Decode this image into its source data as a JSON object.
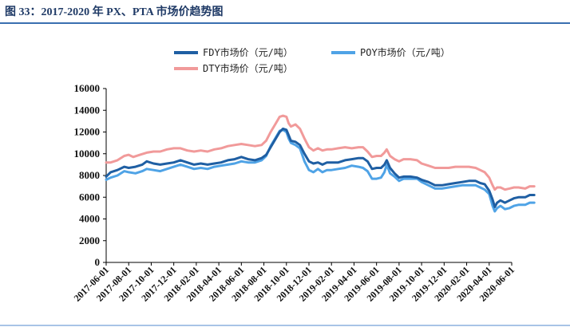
{
  "header": {
    "title": "图  33：2017-2020 年 PX、PTA 市场价趋势图"
  },
  "chart_data": {
    "type": "line",
    "title": "2017-2020 年 PX、PTA 市场价趋势图",
    "xlabel": "",
    "ylabel": "",
    "ylim": [
      0,
      16000
    ],
    "yticks": [
      0,
      2000,
      4000,
      6000,
      8000,
      10000,
      12000,
      14000,
      16000
    ],
    "categories": [
      "2017-06-01",
      "2017-08-01",
      "2017-10-01",
      "2017-12-01",
      "2018-02-01",
      "2018-04-01",
      "2018-06-01",
      "2018-08-01",
      "2018-10-01",
      "2018-12-01",
      "2019-02-01",
      "2019-04-01",
      "2019-06-01",
      "2019-08-01",
      "2019-10-01",
      "2019-12-01",
      "2020-02-01",
      "2020-04-01",
      "2020-06-01"
    ],
    "legend_position": "top",
    "series": [
      {
        "name": "FDY市场价（元/吨）",
        "color": "#1f5fa3",
        "points": [
          [
            0,
            7900
          ],
          [
            0.2,
            8300
          ],
          [
            0.5,
            8500
          ],
          [
            0.8,
            8800
          ],
          [
            1.0,
            8700
          ],
          [
            1.3,
            8800
          ],
          [
            1.6,
            9000
          ],
          [
            1.8,
            9300
          ],
          [
            2.1,
            9100
          ],
          [
            2.4,
            9000
          ],
          [
            2.7,
            9100
          ],
          [
            3.0,
            9200
          ],
          [
            3.3,
            9400
          ],
          [
            3.6,
            9200
          ],
          [
            3.9,
            9000
          ],
          [
            4.2,
            9100
          ],
          [
            4.5,
            9000
          ],
          [
            4.8,
            9100
          ],
          [
            5.1,
            9200
          ],
          [
            5.4,
            9400
          ],
          [
            5.7,
            9500
          ],
          [
            6.0,
            9700
          ],
          [
            6.3,
            9500
          ],
          [
            6.6,
            9400
          ],
          [
            6.9,
            9600
          ],
          [
            7.1,
            9900
          ],
          [
            7.3,
            10600
          ],
          [
            7.5,
            11300
          ],
          [
            7.7,
            12000
          ],
          [
            7.85,
            12300
          ],
          [
            8.0,
            12200
          ],
          [
            8.1,
            11700
          ],
          [
            8.2,
            11200
          ],
          [
            8.4,
            11100
          ],
          [
            8.6,
            10800
          ],
          [
            8.8,
            10000
          ],
          [
            9.0,
            9300
          ],
          [
            9.2,
            9100
          ],
          [
            9.4,
            9200
          ],
          [
            9.6,
            9000
          ],
          [
            9.8,
            9200
          ],
          [
            10.0,
            9200
          ],
          [
            10.3,
            9200
          ],
          [
            10.6,
            9400
          ],
          [
            10.9,
            9500
          ],
          [
            11.2,
            9600
          ],
          [
            11.4,
            9600
          ],
          [
            11.6,
            9300
          ],
          [
            11.8,
            8600
          ],
          [
            12.0,
            8700
          ],
          [
            12.2,
            8700
          ],
          [
            12.35,
            9000
          ],
          [
            12.45,
            9400
          ],
          [
            12.6,
            8700
          ],
          [
            12.8,
            8200
          ],
          [
            13.0,
            7800
          ],
          [
            13.2,
            7900
          ],
          [
            13.5,
            7900
          ],
          [
            13.8,
            7800
          ],
          [
            14.0,
            7600
          ],
          [
            14.3,
            7400
          ],
          [
            14.6,
            7100
          ],
          [
            14.9,
            7100
          ],
          [
            15.2,
            7200
          ],
          [
            15.5,
            7300
          ],
          [
            15.8,
            7400
          ],
          [
            16.1,
            7500
          ],
          [
            16.4,
            7500
          ],
          [
            16.6,
            7300
          ],
          [
            16.8,
            7200
          ],
          [
            17.0,
            6600
          ],
          [
            17.15,
            5800
          ],
          [
            17.25,
            5100
          ],
          [
            17.35,
            5500
          ],
          [
            17.5,
            5700
          ],
          [
            17.7,
            5500
          ],
          [
            17.9,
            5700
          ],
          [
            18.1,
            5900
          ],
          [
            18.3,
            6000
          ],
          [
            18.6,
            6000
          ],
          [
            18.8,
            6200
          ],
          [
            19.0,
            6200
          ]
        ]
      },
      {
        "name": "POY市场价（元/吨）",
        "color": "#4fa3e6",
        "points": [
          [
            0,
            7600
          ],
          [
            0.2,
            7800
          ],
          [
            0.5,
            8000
          ],
          [
            0.8,
            8400
          ],
          [
            1.0,
            8300
          ],
          [
            1.3,
            8200
          ],
          [
            1.6,
            8400
          ],
          [
            1.8,
            8600
          ],
          [
            2.1,
            8500
          ],
          [
            2.4,
            8400
          ],
          [
            2.7,
            8600
          ],
          [
            3.0,
            8800
          ],
          [
            3.3,
            9000
          ],
          [
            3.6,
            8800
          ],
          [
            3.9,
            8600
          ],
          [
            4.2,
            8700
          ],
          [
            4.5,
            8600
          ],
          [
            4.8,
            8800
          ],
          [
            5.1,
            8900
          ],
          [
            5.4,
            9000
          ],
          [
            5.7,
            9100
          ],
          [
            6.0,
            9300
          ],
          [
            6.3,
            9200
          ],
          [
            6.6,
            9200
          ],
          [
            6.9,
            9400
          ],
          [
            7.1,
            9800
          ],
          [
            7.3,
            10700
          ],
          [
            7.5,
            11400
          ],
          [
            7.7,
            12100
          ],
          [
            7.85,
            12200
          ],
          [
            8.0,
            12000
          ],
          [
            8.1,
            11400
          ],
          [
            8.2,
            11000
          ],
          [
            8.4,
            10800
          ],
          [
            8.6,
            10500
          ],
          [
            8.8,
            9300
          ],
          [
            9.0,
            8500
          ],
          [
            9.2,
            8300
          ],
          [
            9.4,
            8600
          ],
          [
            9.6,
            8300
          ],
          [
            9.8,
            8500
          ],
          [
            10.0,
            8500
          ],
          [
            10.3,
            8600
          ],
          [
            10.6,
            8700
          ],
          [
            10.9,
            8900
          ],
          [
            11.2,
            8800
          ],
          [
            11.4,
            8700
          ],
          [
            11.6,
            8400
          ],
          [
            11.8,
            7700
          ],
          [
            12.0,
            7700
          ],
          [
            12.2,
            7800
          ],
          [
            12.35,
            8300
          ],
          [
            12.45,
            9000
          ],
          [
            12.6,
            8200
          ],
          [
            12.8,
            7900
          ],
          [
            13.0,
            7500
          ],
          [
            13.2,
            7700
          ],
          [
            13.5,
            7700
          ],
          [
            13.8,
            7700
          ],
          [
            14.0,
            7400
          ],
          [
            14.3,
            7100
          ],
          [
            14.6,
            6800
          ],
          [
            14.9,
            6800
          ],
          [
            15.2,
            6900
          ],
          [
            15.5,
            7000
          ],
          [
            15.8,
            7100
          ],
          [
            16.1,
            7100
          ],
          [
            16.4,
            7100
          ],
          [
            16.6,
            6900
          ],
          [
            16.8,
            6700
          ],
          [
            17.0,
            6300
          ],
          [
            17.15,
            5200
          ],
          [
            17.25,
            4700
          ],
          [
            17.35,
            5000
          ],
          [
            17.5,
            5200
          ],
          [
            17.7,
            4900
          ],
          [
            17.9,
            5000
          ],
          [
            18.1,
            5200
          ],
          [
            18.3,
            5300
          ],
          [
            18.6,
            5300
          ],
          [
            18.8,
            5500
          ],
          [
            19.0,
            5500
          ]
        ]
      },
      {
        "name": "DTY市场价（元/吨）",
        "color": "#f19a9a",
        "points": [
          [
            0,
            9200
          ],
          [
            0.2,
            9200
          ],
          [
            0.5,
            9400
          ],
          [
            0.8,
            9800
          ],
          [
            1.0,
            9900
          ],
          [
            1.2,
            9700
          ],
          [
            1.5,
            9900
          ],
          [
            1.8,
            10100
          ],
          [
            2.1,
            10200
          ],
          [
            2.4,
            10200
          ],
          [
            2.7,
            10400
          ],
          [
            3.0,
            10500
          ],
          [
            3.3,
            10500
          ],
          [
            3.6,
            10300
          ],
          [
            3.9,
            10200
          ],
          [
            4.2,
            10300
          ],
          [
            4.5,
            10200
          ],
          [
            4.8,
            10400
          ],
          [
            5.1,
            10500
          ],
          [
            5.4,
            10700
          ],
          [
            5.7,
            10800
          ],
          [
            6.0,
            10900
          ],
          [
            6.3,
            10800
          ],
          [
            6.6,
            10700
          ],
          [
            6.9,
            10800
          ],
          [
            7.1,
            11200
          ],
          [
            7.3,
            12000
          ],
          [
            7.5,
            12700
          ],
          [
            7.7,
            13400
          ],
          [
            7.85,
            13500
          ],
          [
            8.0,
            13400
          ],
          [
            8.1,
            12800
          ],
          [
            8.2,
            12500
          ],
          [
            8.4,
            12700
          ],
          [
            8.6,
            12300
          ],
          [
            8.8,
            11400
          ],
          [
            9.0,
            10600
          ],
          [
            9.2,
            10300
          ],
          [
            9.4,
            10500
          ],
          [
            9.6,
            10300
          ],
          [
            9.8,
            10400
          ],
          [
            10.0,
            10400
          ],
          [
            10.3,
            10500
          ],
          [
            10.6,
            10600
          ],
          [
            10.9,
            10500
          ],
          [
            11.2,
            10600
          ],
          [
            11.4,
            10600
          ],
          [
            11.6,
            10200
          ],
          [
            11.8,
            9700
          ],
          [
            12.0,
            9800
          ],
          [
            12.2,
            9800
          ],
          [
            12.35,
            10100
          ],
          [
            12.45,
            10400
          ],
          [
            12.6,
            9800
          ],
          [
            12.8,
            9500
          ],
          [
            13.0,
            9300
          ],
          [
            13.2,
            9500
          ],
          [
            13.5,
            9500
          ],
          [
            13.8,
            9400
          ],
          [
            14.0,
            9100
          ],
          [
            14.3,
            8900
          ],
          [
            14.6,
            8700
          ],
          [
            14.9,
            8700
          ],
          [
            15.2,
            8700
          ],
          [
            15.5,
            8800
          ],
          [
            15.8,
            8800
          ],
          [
            16.1,
            8800
          ],
          [
            16.4,
            8700
          ],
          [
            16.6,
            8500
          ],
          [
            16.8,
            8300
          ],
          [
            17.0,
            7800
          ],
          [
            17.15,
            7100
          ],
          [
            17.25,
            6700
          ],
          [
            17.35,
            6900
          ],
          [
            17.5,
            6900
          ],
          [
            17.7,
            6700
          ],
          [
            17.9,
            6800
          ],
          [
            18.1,
            6900
          ],
          [
            18.3,
            6900
          ],
          [
            18.6,
            6800
          ],
          [
            18.8,
            7000
          ],
          [
            19.0,
            7000
          ]
        ]
      }
    ]
  }
}
